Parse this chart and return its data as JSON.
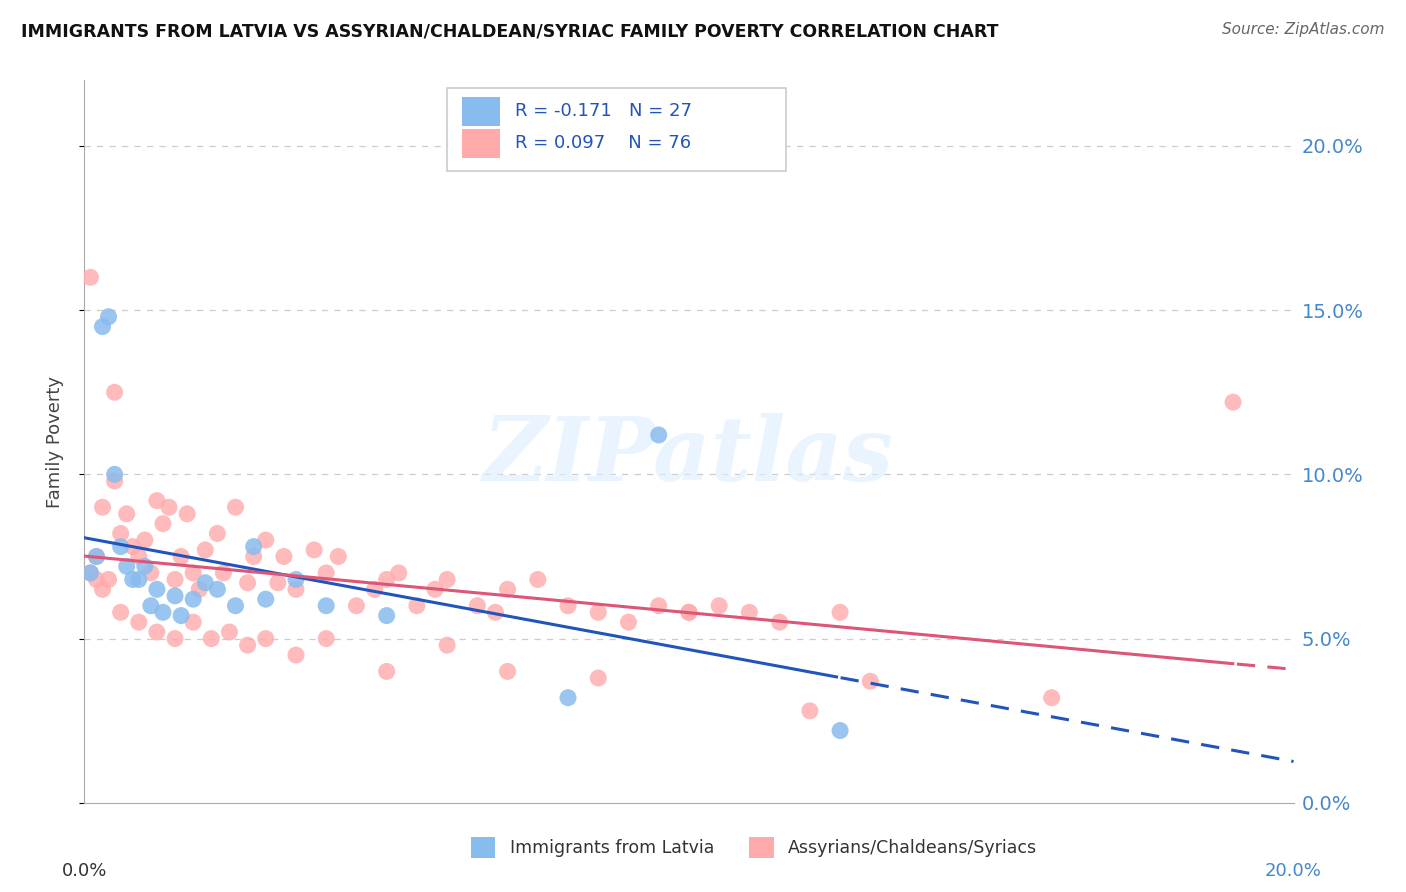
{
  "title": "IMMIGRANTS FROM LATVIA VS ASSYRIAN/CHALDEAN/SYRIAC FAMILY POVERTY CORRELATION CHART",
  "source": "Source: ZipAtlas.com",
  "ylabel": "Family Poverty",
  "ytick_labels": [
    "0.0%",
    "5.0%",
    "10.0%",
    "15.0%",
    "20.0%"
  ],
  "ytick_values": [
    0.0,
    0.05,
    0.1,
    0.15,
    0.2
  ],
  "xlim": [
    0.0,
    0.2
  ],
  "ylim": [
    0.0,
    0.22
  ],
  "r_latvia": -0.171,
  "n_latvia": 27,
  "r_assyrian": 0.097,
  "n_assyrian": 76,
  "blue_color": "#88BBEE",
  "pink_color": "#FFAAAA",
  "trend_blue": "#2255BB",
  "trend_pink": "#DD5577",
  "legend_text_color": "#2255BB",
  "right_axis_color": "#4488CC",
  "grid_color": "#CCCCCC",
  "latvia_x": [
    0.001,
    0.002,
    0.003,
    0.004,
    0.005,
    0.006,
    0.007,
    0.008,
    0.009,
    0.01,
    0.011,
    0.012,
    0.013,
    0.015,
    0.016,
    0.018,
    0.02,
    0.022,
    0.025,
    0.028,
    0.03,
    0.035,
    0.04,
    0.05,
    0.08,
    0.095,
    0.125
  ],
  "latvia_y": [
    0.07,
    0.075,
    0.145,
    0.148,
    0.1,
    0.078,
    0.072,
    0.068,
    0.068,
    0.072,
    0.06,
    0.065,
    0.058,
    0.063,
    0.057,
    0.062,
    0.067,
    0.065,
    0.06,
    0.078,
    0.062,
    0.068,
    0.06,
    0.057,
    0.032,
    0.112,
    0.022
  ],
  "assyrian_x": [
    0.001,
    0.001,
    0.002,
    0.002,
    0.003,
    0.004,
    0.005,
    0.005,
    0.006,
    0.007,
    0.008,
    0.009,
    0.01,
    0.011,
    0.012,
    0.013,
    0.014,
    0.015,
    0.016,
    0.017,
    0.018,
    0.019,
    0.02,
    0.022,
    0.023,
    0.025,
    0.027,
    0.028,
    0.03,
    0.032,
    0.033,
    0.035,
    0.038,
    0.04,
    0.042,
    0.045,
    0.048,
    0.05,
    0.052,
    0.055,
    0.058,
    0.06,
    0.065,
    0.068,
    0.07,
    0.075,
    0.08,
    0.085,
    0.09,
    0.095,
    0.1,
    0.105,
    0.11,
    0.115,
    0.12,
    0.125,
    0.003,
    0.006,
    0.009,
    0.012,
    0.015,
    0.018,
    0.021,
    0.024,
    0.027,
    0.03,
    0.035,
    0.04,
    0.05,
    0.06,
    0.07,
    0.085,
    0.1,
    0.13,
    0.16,
    0.19
  ],
  "assyrian_y": [
    0.07,
    0.16,
    0.068,
    0.075,
    0.09,
    0.068,
    0.098,
    0.125,
    0.082,
    0.088,
    0.078,
    0.075,
    0.08,
    0.07,
    0.092,
    0.085,
    0.09,
    0.068,
    0.075,
    0.088,
    0.07,
    0.065,
    0.077,
    0.082,
    0.07,
    0.09,
    0.067,
    0.075,
    0.08,
    0.067,
    0.075,
    0.065,
    0.077,
    0.07,
    0.075,
    0.06,
    0.065,
    0.068,
    0.07,
    0.06,
    0.065,
    0.068,
    0.06,
    0.058,
    0.065,
    0.068,
    0.06,
    0.058,
    0.055,
    0.06,
    0.058,
    0.06,
    0.058,
    0.055,
    0.028,
    0.058,
    0.065,
    0.058,
    0.055,
    0.052,
    0.05,
    0.055,
    0.05,
    0.052,
    0.048,
    0.05,
    0.045,
    0.05,
    0.04,
    0.048,
    0.04,
    0.038,
    0.058,
    0.037,
    0.032,
    0.122
  ]
}
